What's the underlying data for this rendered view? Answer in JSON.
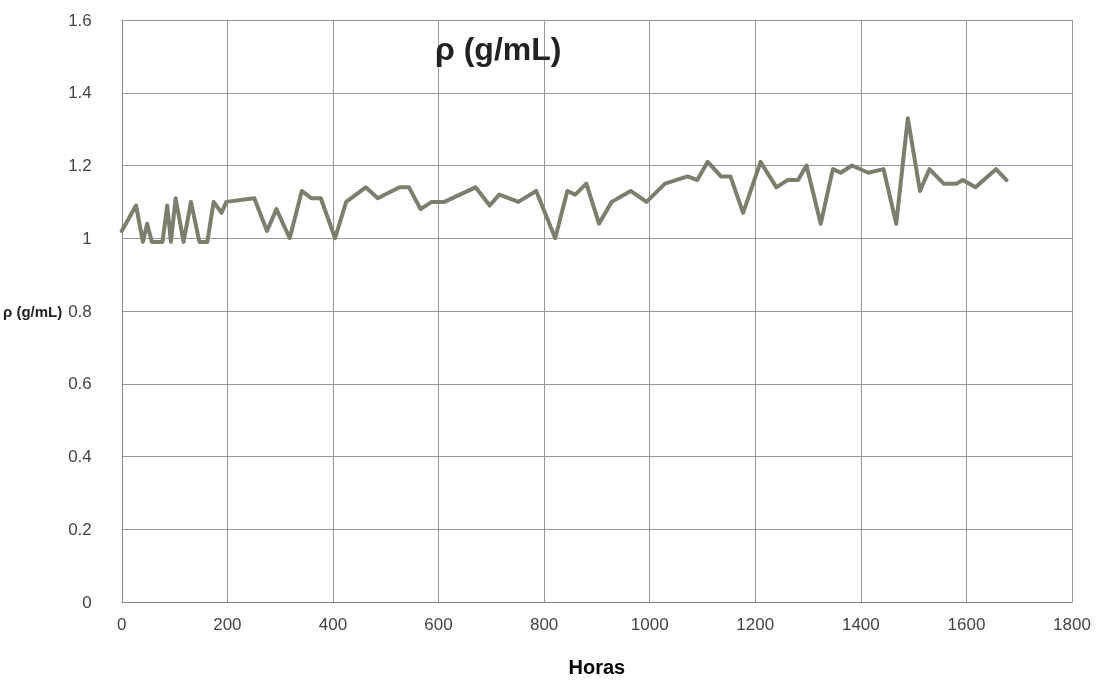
{
  "chart_data": {
    "type": "line",
    "title": "ρ (g/mL)",
    "xlabel": "Horas",
    "ylabel": "ρ (g/mL)",
    "xlim": [
      0,
      1800
    ],
    "xticks": [
      0,
      200,
      400,
      600,
      800,
      1000,
      1200,
      1400,
      1600,
      1800
    ],
    "ylim": [
      0,
      1.6
    ],
    "yticks": [
      0,
      0.2,
      0.4,
      0.6,
      0.8,
      1,
      1.2,
      1.4,
      1.6
    ],
    "grid": true,
    "marker": "none",
    "line_style": "solid",
    "series": [
      {
        "color": "#7b7f6e",
        "x": [
          0,
          27,
          40,
          48,
          57,
          77,
          86,
          93,
          102,
          117,
          131,
          147,
          162,
          174,
          189,
          198,
          251,
          275,
          293,
          318,
          341,
          359,
          377,
          404,
          425,
          462,
          485,
          526,
          544,
          566,
          587,
          611,
          670,
          697,
          715,
          751,
          785,
          821,
          844,
          859,
          880,
          904,
          928,
          964,
          994,
          1029,
          1072,
          1090,
          1110,
          1135,
          1153,
          1177,
          1210,
          1240,
          1261,
          1281,
          1297,
          1324,
          1347,
          1362,
          1383,
          1414,
          1443,
          1467,
          1489,
          1512,
          1530,
          1557,
          1581,
          1593,
          1617,
          1656,
          1676
        ],
        "values": [
          1.02,
          1.09,
          0.99,
          1.04,
          0.99,
          0.99,
          1.09,
          0.99,
          1.11,
          0.99,
          1.1,
          0.99,
          0.99,
          1.1,
          1.07,
          1.1,
          1.11,
          1.02,
          1.08,
          1.0,
          1.13,
          1.11,
          1.11,
          1.0,
          1.1,
          1.14,
          1.11,
          1.14,
          1.14,
          1.08,
          1.1,
          1.1,
          1.14,
          1.09,
          1.12,
          1.1,
          1.13,
          1.0,
          1.13,
          1.12,
          1.15,
          1.04,
          1.1,
          1.13,
          1.1,
          1.15,
          1.17,
          1.16,
          1.21,
          1.17,
          1.17,
          1.07,
          1.21,
          1.14,
          1.16,
          1.16,
          1.2,
          1.04,
          1.19,
          1.18,
          1.2,
          1.18,
          1.19,
          1.04,
          1.33,
          1.13,
          1.19,
          1.15,
          1.15,
          1.16,
          1.14,
          1.19,
          1.16
        ]
      }
    ]
  }
}
